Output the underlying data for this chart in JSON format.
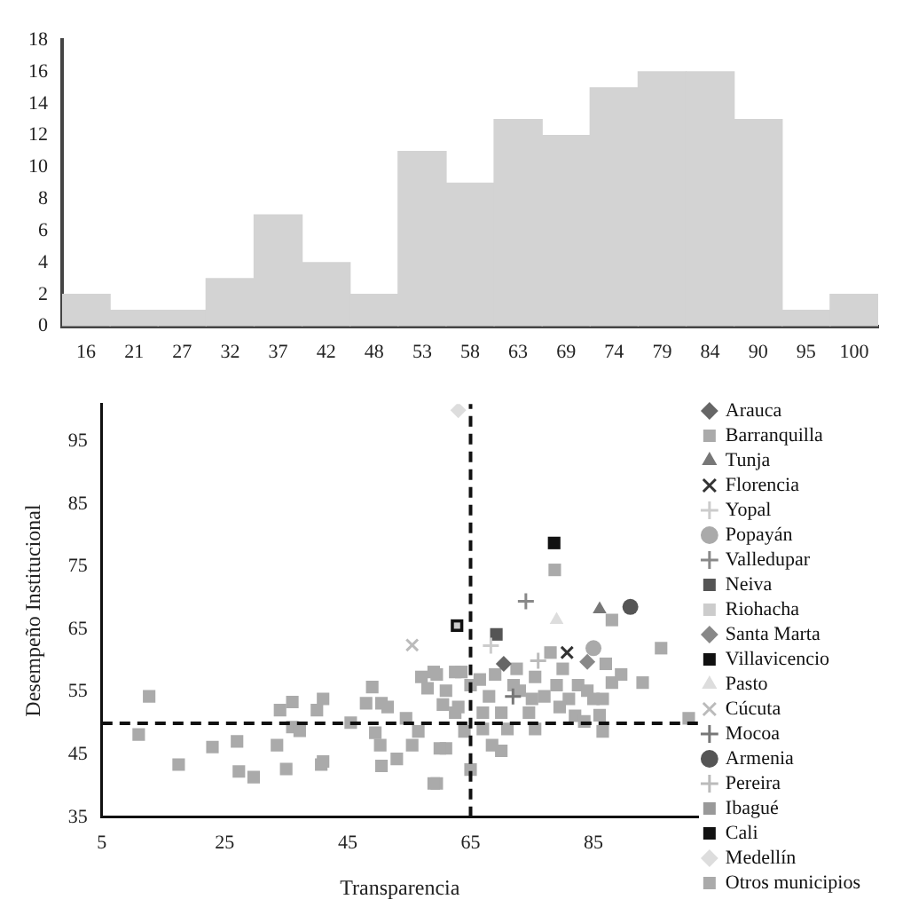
{
  "chart_data": [
    {
      "type": "bar",
      "categories": [
        "16",
        "21",
        "27",
        "32",
        "37",
        "42",
        "48",
        "53",
        "58",
        "63",
        "69",
        "74",
        "79",
        "84",
        "90",
        "95",
        "100"
      ],
      "values": [
        2,
        1,
        1,
        3,
        7,
        4,
        2,
        11,
        9,
        13,
        12,
        15,
        16,
        16,
        13,
        1,
        2
      ],
      "color": "#d3d3d3",
      "ylim": [
        0,
        18
      ],
      "yticks": [
        0,
        2,
        4,
        6,
        8,
        10,
        12,
        14,
        16,
        18
      ],
      "grid": false,
      "legend": false
    },
    {
      "type": "scatter",
      "xlabel": "Transparencia",
      "ylabel": "Desempeño Institucional",
      "xlim": [
        5,
        102
      ],
      "xticks": [
        5,
        25,
        45,
        65,
        85
      ],
      "ylim": [
        35,
        101
      ],
      "yticks": [
        35,
        45,
        55,
        65,
        75,
        85,
        95
      ],
      "grid": false,
      "legend": "right",
      "ref_lines": [
        {
          "axis": "x",
          "value": 65,
          "color": "#111111",
          "line_style": "dashed"
        },
        {
          "axis": "y",
          "value": 50,
          "color": "#111111",
          "line_style": "dashed"
        }
      ],
      "series": [
        {
          "name": "Arauca",
          "color": "#666666",
          "marker": "diamond",
          "x": [
            70.4
          ],
          "values": [
            59.5
          ]
        },
        {
          "name": "Barranquilla",
          "color": "#aaaaaa",
          "marker": "square",
          "x": [
            78.7
          ],
          "values": [
            74.5
          ]
        },
        {
          "name": "Tunja",
          "color": "#777777",
          "marker": "triangle",
          "x": [
            86
          ],
          "values": [
            68.2
          ]
        },
        {
          "name": "Florencia",
          "color": "#333333",
          "marker": "x",
          "x": [
            80.7
          ],
          "values": [
            61.3
          ]
        },
        {
          "name": "Yopal",
          "color": "#cccccc",
          "marker": "cross",
          "x": [
            68.3
          ],
          "values": [
            62.4
          ]
        },
        {
          "name": "Popayán",
          "color": "#aaaaaa",
          "marker": "circle",
          "x": [
            85
          ],
          "values": [
            62
          ]
        },
        {
          "name": "Valledupar",
          "color": "#888888",
          "marker": "cross",
          "x": [
            74
          ],
          "values": [
            69.5
          ]
        },
        {
          "name": "Neiva",
          "color": "#555555",
          "marker": "square",
          "x": [
            69.2
          ],
          "values": [
            64.2
          ]
        },
        {
          "name": "Riohacha",
          "color": "#cccccc",
          "marker": "square",
          "x": [
            62.8
          ],
          "values": [
            65.6
          ]
        },
        {
          "name": "Santa Marta",
          "color": "#888888",
          "marker": "diamond",
          "x": [
            84
          ],
          "values": [
            59.8
          ]
        },
        {
          "name": "Villavicencio",
          "color": "#111111",
          "marker": "square",
          "x": [
            62.8
          ],
          "values": [
            65.6
          ]
        },
        {
          "name": "Pasto",
          "color": "#dddddd",
          "marker": "triangle",
          "x": [
            79
          ],
          "values": [
            66.5
          ]
        },
        {
          "name": "Cúcuta",
          "color": "#bbbbbb",
          "marker": "x",
          "x": [
            55.5
          ],
          "values": [
            62.5
          ]
        },
        {
          "name": "Mocoa",
          "color": "#777777",
          "marker": "cross",
          "x": [
            71.9
          ],
          "values": [
            54.3
          ]
        },
        {
          "name": "Armenia",
          "color": "#555555",
          "marker": "circle",
          "x": [
            91
          ],
          "values": [
            68.6
          ]
        },
        {
          "name": "Pereira",
          "color": "#bbbbbb",
          "marker": "cross",
          "x": [
            76
          ],
          "values": [
            60
          ]
        },
        {
          "name": "Ibagué",
          "color": "#999999",
          "marker": "square",
          "x": [
            null
          ],
          "values": [
            null
          ]
        },
        {
          "name": "Cali",
          "color": "#111111",
          "marker": "square",
          "x": [
            78.6
          ],
          "values": [
            78.8
          ]
        },
        {
          "name": "Medellín",
          "color": "#dddddd",
          "marker": "diamond",
          "x": [
            63
          ],
          "values": [
            100
          ]
        },
        {
          "name": "Otros municipios",
          "color": "#aaaaaa",
          "marker": "square",
          "x": [
            11,
            12.7,
            17.5,
            23,
            27,
            27.3,
            29.7,
            33.5,
            34,
            36,
            35,
            36,
            37.2,
            40,
            41,
            40.7,
            41,
            45.5,
            48,
            49,
            50.5,
            51.5,
            49.5,
            50.3,
            50.5,
            53,
            54.5,
            55.5,
            56.5,
            57,
            58,
            59.5,
            60.5,
            61,
            62.5,
            63.5,
            59.5,
            59,
            59,
            60,
            62.5,
            64,
            65,
            65,
            66.5,
            68,
            69,
            68.5,
            70,
            71,
            72.5,
            73,
            74.5,
            75.5,
            75.5,
            77,
            78,
            79,
            80,
            81,
            82,
            82.5,
            83.5,
            85,
            86.5,
            86.5,
            87,
            88,
            88,
            89.5,
            93,
            96,
            100.5,
            61,
            63,
            67,
            72,
            75,
            79.5,
            84,
            86,
            70,
            67
          ],
          "values": [
            48.2,
            54.3,
            43.4,
            46.2,
            47.1,
            42.3,
            41.4,
            46.5,
            52.1,
            53.4,
            42.7,
            49.4,
            48.8,
            52.1,
            53.9,
            43.4,
            43.9,
            50.1,
            53.2,
            55.8,
            53.2,
            52.6,
            48.5,
            46.5,
            43.2,
            44.3,
            50.8,
            46.5,
            48.7,
            57.4,
            55.6,
            57.8,
            53,
            46,
            51.7,
            58.2,
            40.4,
            58.2,
            40.4,
            46,
            58.2,
            48.7,
            42.6,
            56.1,
            57,
            54.3,
            57.8,
            46.5,
            51.7,
            49.1,
            58.7,
            55.2,
            51.7,
            57.4,
            49.1,
            54.3,
            61.3,
            56.1,
            58.7,
            53.9,
            51.2,
            56.1,
            50.3,
            53.9,
            53.9,
            48.7,
            59.5,
            56.5,
            66.5,
            57.8,
            56.5,
            62,
            50.8,
            55.2,
            52.6,
            51.7,
            56.1,
            53.9,
            52.6,
            55.2,
            51.3,
            45.6,
            49.1
          ]
        }
      ]
    }
  ]
}
